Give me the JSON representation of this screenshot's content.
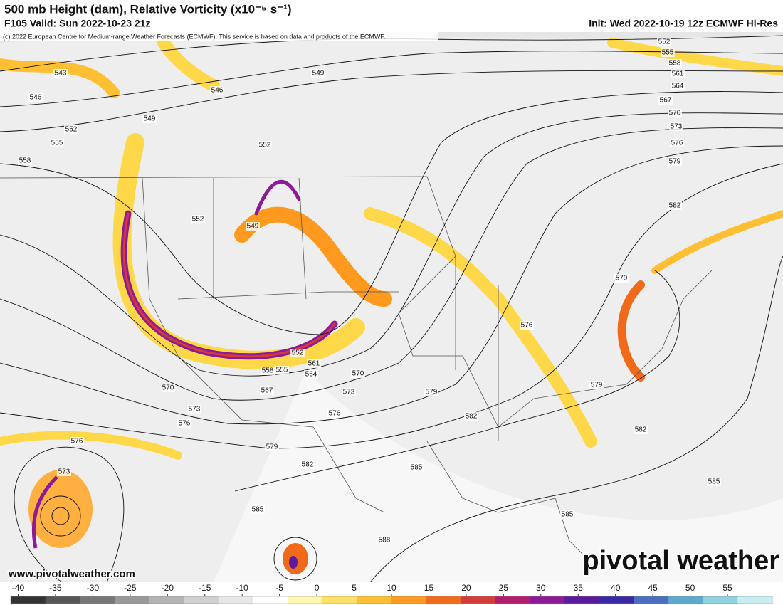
{
  "header": {
    "title": "500 mb Height (dam), Relative Vorticity (x10⁻⁵ s⁻¹)",
    "valid": "F105 Valid: Sun 2022-10-23 21z",
    "init": "Init: Wed 2022-10-19 12z ECMWF Hi-Res",
    "copyright": "(c) 2022 European Centre for Medium-range Weather Forecasts (ECMWF). This service is based on data and products of the ECMWF."
  },
  "contour_labels": [
    "543",
    "546",
    "549",
    "552",
    "555",
    "558",
    "546",
    "549",
    "552",
    "552",
    "549",
    "552",
    "555",
    "558",
    "561",
    "564",
    "567",
    "570",
    "573",
    "576",
    "579",
    "582",
    "579",
    "576",
    "579",
    "582",
    "585",
    "585",
    "588",
    "585",
    "582",
    "579",
    "576",
    "573",
    "570",
    "564",
    "561",
    "558",
    "555",
    "567",
    "570",
    "573",
    "576",
    "579",
    "582",
    "585",
    "576",
    "573",
    "552"
  ],
  "website": "www.pivotalweather.com",
  "watermark": "pivotal weather",
  "colorbar": {
    "ticks": [
      -40,
      -35,
      -30,
      -25,
      -20,
      -15,
      -10,
      -5,
      0,
      5,
      10,
      15,
      20,
      25,
      30,
      35,
      40,
      45,
      50,
      55
    ],
    "range": [
      -41,
      61
    ],
    "colors": [
      "#333333",
      "#555555",
      "#777777",
      "#999999",
      "#b4b4b4",
      "#cfcfcf",
      "#e8e8e8",
      "#ffffff",
      "#fff6b0",
      "#ffe066",
      "#ffbf33",
      "#ff9a1f",
      "#f06a1a",
      "#d63a3a",
      "#b01e6e",
      "#8c1a99",
      "#5a1a9e",
      "#3b2aa8",
      "#4a6fc0",
      "#5fa8d0",
      "#8fd3e0",
      "#c8eef2"
    ]
  }
}
